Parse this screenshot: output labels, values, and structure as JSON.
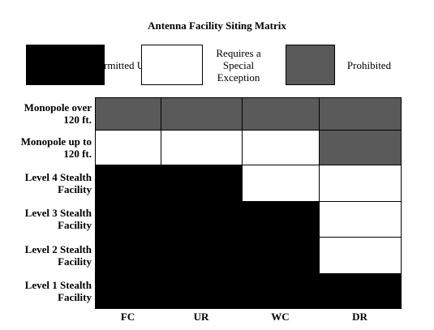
{
  "title": "Antenna Facility Siting Matrix",
  "legend": [
    {
      "label": "Permitted Use",
      "color": "#000000"
    },
    {
      "label": "Requires a Special Exception",
      "color": "#ffffff"
    },
    {
      "label": "Prohibited",
      "color": "#5a5a5a"
    }
  ],
  "columns": [
    "FC",
    "UR",
    "WC",
    "DR"
  ],
  "rows": [
    {
      "label": "Monopole over 120 ft.",
      "cells": [
        "Prohibited",
        "Prohibited",
        "Prohibited",
        "Prohibited"
      ]
    },
    {
      "label": "Monopole up to 120 ft.",
      "cells": [
        "Requires a Special Exception",
        "Requires a Special Exception",
        "Requires a Special Exception",
        "Prohibited"
      ]
    },
    {
      "label": "Level 4 Stealth Facility",
      "cells": [
        "Permitted Use",
        "Permitted Use",
        "Requires a Special Exception",
        "Requires a Special Exception"
      ]
    },
    {
      "label": "Level 3 Stealth Facility",
      "cells": [
        "Permitted Use",
        "Permitted Use",
        "Permitted Use",
        "Requires a Special Exception"
      ]
    },
    {
      "label": "Level 2 Stealth Facility",
      "cells": [
        "Permitted Use",
        "Permitted Use",
        "Permitted Use",
        "Requires a Special Exception"
      ]
    },
    {
      "label": "Level 1 Stealth Facility",
      "cells": [
        "Permitted Use",
        "Permitted Use",
        "Permitted Use",
        "Permitted Use"
      ]
    }
  ]
}
